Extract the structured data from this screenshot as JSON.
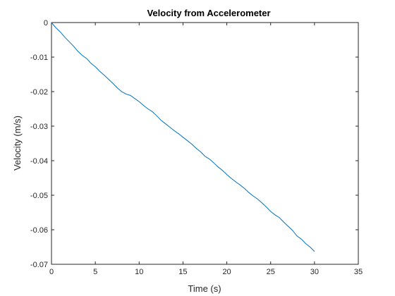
{
  "chart_data": {
    "type": "line",
    "title": "Velocity from Accelerometer",
    "xlabel": "Time (s)",
    "ylabel": "Velocity (m/s)",
    "xlim": [
      0,
      35
    ],
    "ylim": [
      -0.07,
      0
    ],
    "xticks": [
      0,
      5,
      10,
      15,
      20,
      25,
      30,
      35
    ],
    "xtick_labels": [
      "0",
      "5",
      "10",
      "15",
      "20",
      "25",
      "30",
      "35"
    ],
    "yticks": [
      0,
      -0.01,
      -0.02,
      -0.03,
      -0.04,
      -0.05,
      -0.06,
      -0.07
    ],
    "ytick_labels": [
      "0",
      "-0.01",
      "-0.02",
      "-0.03",
      "-0.04",
      "-0.05",
      "-0.06",
      "-0.07"
    ],
    "grid": false,
    "series": [
      {
        "color": "#0072BD",
        "x": [
          0,
          0.5,
          1,
          1.5,
          2,
          2.5,
          3,
          3.5,
          4,
          4.5,
          5,
          5.5,
          6,
          6.5,
          7,
          7.5,
          8,
          8.5,
          9,
          9.5,
          10,
          10.5,
          11,
          11.5,
          12,
          12.5,
          13,
          13.5,
          14,
          14.5,
          15,
          15.5,
          16,
          16.5,
          17,
          17.5,
          18,
          18.5,
          19,
          19.5,
          20,
          20.5,
          21,
          21.5,
          22,
          22.5,
          23,
          23.5,
          24,
          24.5,
          25,
          25.5,
          26,
          26.5,
          27,
          27.5,
          28,
          28.5,
          29,
          29.5,
          30
        ],
        "y": [
          0,
          -0.0015,
          -0.0027,
          -0.0042,
          -0.0055,
          -0.0068,
          -0.0083,
          -0.0095,
          -0.0104,
          -0.0118,
          -0.0128,
          -0.0141,
          -0.0152,
          -0.0164,
          -0.0176,
          -0.0189,
          -0.02,
          -0.0207,
          -0.0211,
          -0.022,
          -0.0229,
          -0.024,
          -0.025,
          -0.0258,
          -0.027,
          -0.0283,
          -0.0293,
          -0.0303,
          -0.0313,
          -0.0322,
          -0.0332,
          -0.0342,
          -0.0352,
          -0.0364,
          -0.0374,
          -0.0387,
          -0.0395,
          -0.0406,
          -0.0418,
          -0.0428,
          -0.044,
          -0.0451,
          -0.0461,
          -0.047,
          -0.048,
          -0.0492,
          -0.0502,
          -0.0511,
          -0.0522,
          -0.0534,
          -0.0547,
          -0.0557,
          -0.0565,
          -0.0578,
          -0.059,
          -0.0602,
          -0.0618,
          -0.0627,
          -0.064,
          -0.065,
          -0.0663
        ]
      }
    ]
  }
}
